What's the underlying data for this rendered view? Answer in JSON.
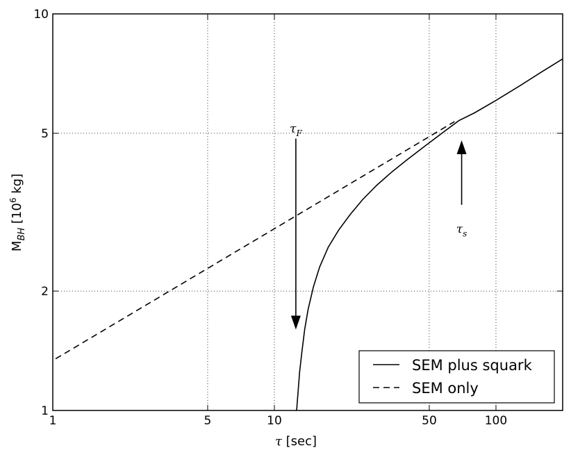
{
  "chart_data": {
    "type": "line",
    "xlabel": "τ [sec]",
    "ylabel": "M_BH [10^6 kg]",
    "ylabel_parts": {
      "main": "M",
      "sub": "BH",
      "open": " [10",
      "sup": "6",
      "close": "  kg]"
    },
    "xscale": "log",
    "yscale": "log",
    "xlim": [
      1,
      200
    ],
    "ylim": [
      1,
      10
    ],
    "grid": true,
    "legend_position": "bottom-right",
    "x_ticks": [
      {
        "value": 1,
        "label": "1"
      },
      {
        "value": 5,
        "label": "5"
      },
      {
        "value": 10,
        "label": "10"
      },
      {
        "value": 50,
        "label": "50"
      },
      {
        "value": 100,
        "label": "100"
      }
    ],
    "y_ticks": [
      {
        "value": 1,
        "label": "1"
      },
      {
        "value": 2,
        "label": "2"
      },
      {
        "value": 5,
        "label": "5"
      },
      {
        "value": 10,
        "label": "10"
      }
    ],
    "series": [
      {
        "name": "SEM plus squark",
        "style": "solid",
        "color": "#000000",
        "x": [
          12.6,
          12.8,
          13.0,
          13.3,
          13.7,
          14.2,
          15.0,
          16.0,
          17.5,
          19.5,
          22.0,
          25.0,
          29.0,
          34.0,
          40.0,
          48.0,
          57.0,
          68.0,
          80.0,
          100.0,
          130.0,
          160.0,
          200.0
        ],
        "y": [
          1.0,
          1.12,
          1.25,
          1.4,
          1.6,
          1.8,
          2.05,
          2.3,
          2.58,
          2.85,
          3.12,
          3.4,
          3.7,
          4.0,
          4.3,
          4.65,
          5.0,
          5.38,
          5.63,
          6.05,
          6.62,
          7.13,
          7.7
        ]
      },
      {
        "name": "SEM only",
        "style": "dashed",
        "color": "#000000",
        "x": [
          1.03,
          65.0
        ],
        "y": [
          1.35,
          5.35
        ]
      }
    ],
    "annotations": [
      {
        "text": "τ",
        "sub": "F",
        "x": 12.5,
        "y": 5.1,
        "arrow_to": [
          12.5,
          1.6
        ],
        "arrow_from": [
          12.5,
          4.85
        ]
      },
      {
        "text": "τ",
        "sub": "s",
        "x": 70.0,
        "y": 2.85,
        "arrow_to": [
          70.0,
          4.8
        ],
        "arrow_from": [
          70.0,
          3.3
        ]
      }
    ]
  }
}
